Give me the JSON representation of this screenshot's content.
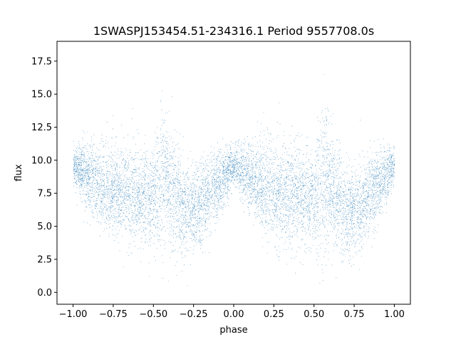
{
  "chart_data": {
    "type": "scatter",
    "title": "1SWASPJ153454.51-234316.1 Period 9557708.0s",
    "xlabel": "phase",
    "ylabel": "flux",
    "xlim": [
      -1.1,
      1.1
    ],
    "ylim": [
      -0.9,
      19.0
    ],
    "x_ticks": [
      -1.0,
      -0.75,
      -0.5,
      -0.25,
      0.0,
      0.25,
      0.5,
      0.75,
      1.0
    ],
    "x_tick_labels": [
      "−1.00",
      "−0.75",
      "−0.50",
      "−0.25",
      "0.00",
      "0.25",
      "0.50",
      "0.75",
      "1.00"
    ],
    "y_ticks": [
      0.0,
      2.5,
      5.0,
      7.5,
      10.0,
      12.5,
      15.0,
      17.5
    ],
    "y_tick_labels": [
      "0.0",
      "2.5",
      "5.0",
      "7.5",
      "10.0",
      "12.5",
      "15.0",
      "17.5"
    ],
    "grid": false,
    "point_color": "#1f77b4",
    "series": [
      {
        "x_range": [
          -1.0,
          1.0
        ],
        "period_in_phase": 1.0,
        "profile": [
          {
            "phase": 0.0,
            "flux_center": 9.6,
            "spread": 0.9
          },
          {
            "phase": 0.05,
            "flux_center": 9.2,
            "spread": 1.3
          },
          {
            "phase": 0.1,
            "flux_center": 8.6,
            "spread": 1.8
          },
          {
            "phase": 0.2,
            "flux_center": 7.8,
            "spread": 2.2
          },
          {
            "phase": 0.3,
            "flux_center": 7.6,
            "spread": 2.4
          },
          {
            "phase": 0.4,
            "flux_center": 7.4,
            "spread": 2.4
          },
          {
            "phase": 0.5,
            "flux_center": 7.0,
            "spread": 2.3
          },
          {
            "phase": 0.55,
            "flux_center": 8.5,
            "spread": 3.8
          },
          {
            "phase": 0.6,
            "flux_center": 8.0,
            "spread": 3.0
          },
          {
            "phase": 0.7,
            "flux_center": 6.0,
            "spread": 2.2
          },
          {
            "phase": 0.8,
            "flux_center": 6.6,
            "spread": 2.0
          },
          {
            "phase": 0.9,
            "flux_center": 8.2,
            "spread": 1.8
          },
          {
            "phase": 1.0,
            "flux_center": 9.6,
            "spread": 0.9
          }
        ],
        "flux_min": 0.0,
        "flux_max": 18.6
      }
    ]
  }
}
